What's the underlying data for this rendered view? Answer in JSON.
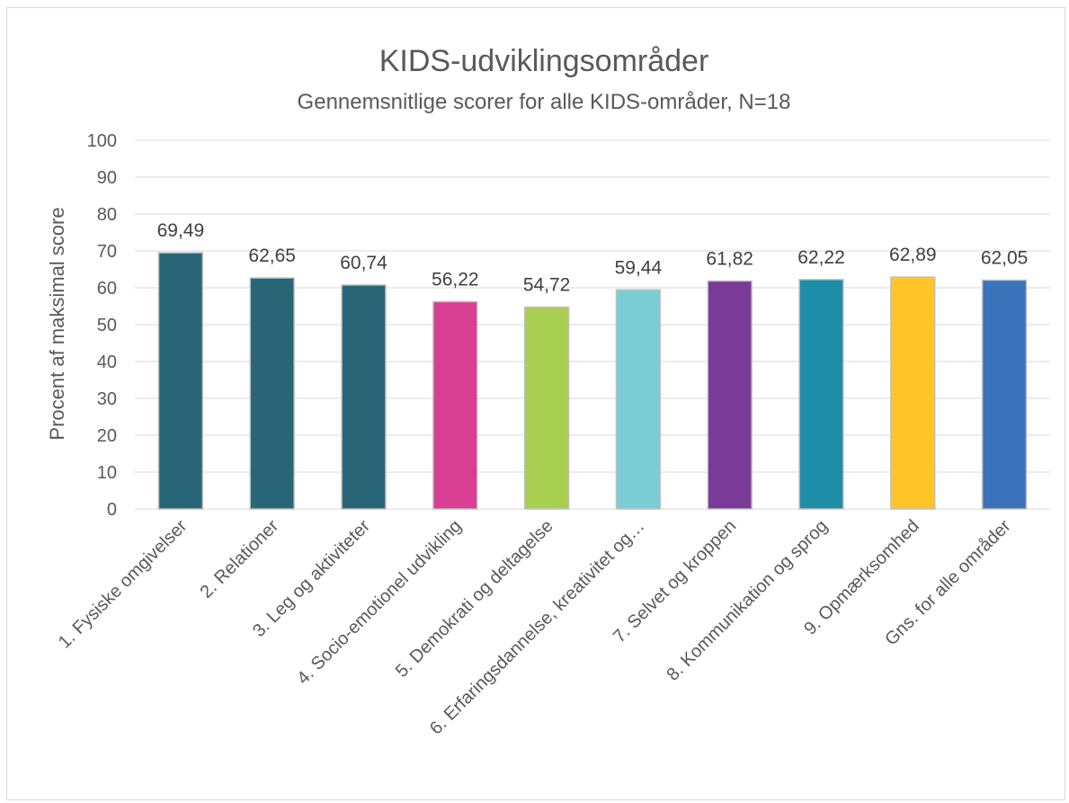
{
  "chart_data": {
    "type": "bar",
    "title": "KIDS-udviklingsområder",
    "subtitle": "Gennemsnitlige scorer for alle KIDS-områder, N=18",
    "ylabel": "Procent af maksimal score",
    "xlabel": "",
    "ylim": [
      0,
      100
    ],
    "yticks": [
      0,
      10,
      20,
      30,
      40,
      50,
      60,
      70,
      80,
      90,
      100
    ],
    "grid": true,
    "legend": "none",
    "categories": [
      "1. Fysiske omgivelser",
      "2. Relationer",
      "3. Leg og aktiviteter",
      "4. Socio-emotionel udvikling",
      "5. Demokrati og deltagelse",
      "6. Erfaringsdannelse, kreativitet og…",
      "7. Selvet og kroppen",
      "8. Kommunikation og sprog",
      "9. Opmærksomhed",
      "Gns. for alle områder"
    ],
    "values": [
      69.49,
      62.65,
      60.74,
      56.22,
      54.72,
      59.44,
      61.82,
      62.22,
      62.89,
      62.05
    ],
    "data_labels": [
      "69,49",
      "62,65",
      "60,74",
      "56,22",
      "54,72",
      "59,44",
      "61,82",
      "62,22",
      "62,89",
      "62,05"
    ],
    "colors": [
      "#286677",
      "#286677",
      "#286677",
      "#d83e92",
      "#a8cf50",
      "#7acdd5",
      "#7a3a97",
      "#1e8ea8",
      "#fec42a",
      "#3b72b9"
    ]
  }
}
